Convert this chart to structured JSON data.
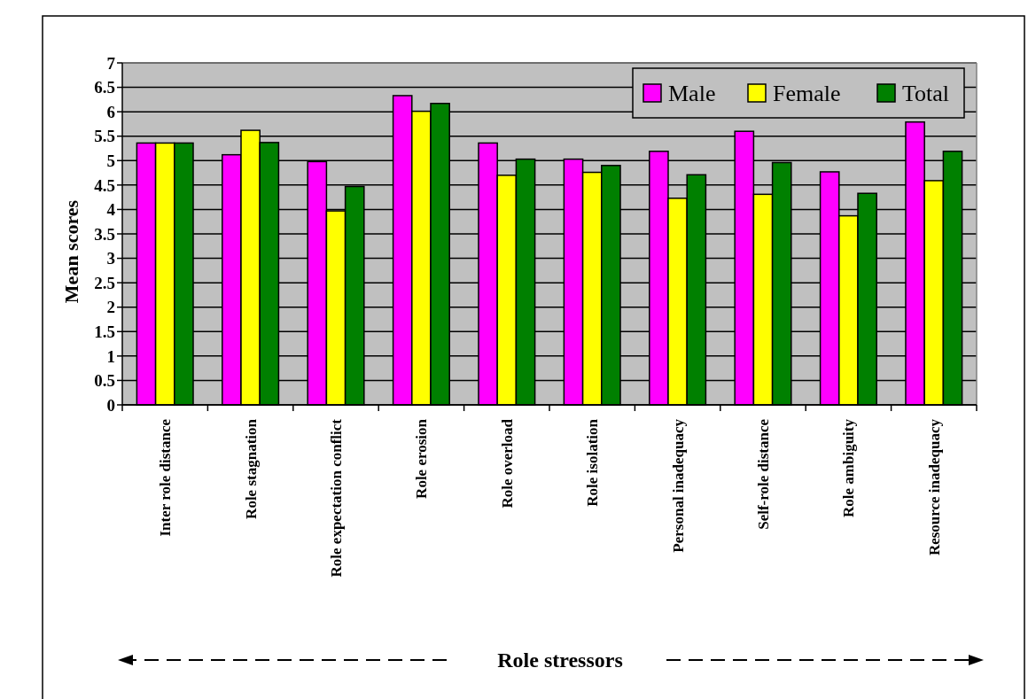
{
  "chart_data": {
    "type": "bar",
    "xlabel": "Role stressors",
    "ylabel": "Mean scores",
    "categories": [
      "Inter role distance",
      "Role stagnation",
      "Role expectation conflict",
      "Role erosion",
      "Role overload",
      "Role isolation",
      "Personal inadequacy",
      "Self-role distance",
      "Role ambiguity",
      "Resource inadequacy"
    ],
    "series": [
      {
        "name": "Male",
        "color": "#ff00ff",
        "values": [
          5.36,
          5.12,
          4.98,
          6.33,
          5.36,
          5.03,
          5.19,
          5.6,
          4.77,
          5.79
        ]
      },
      {
        "name": "Female",
        "color": "#ffff00",
        "values": [
          5.36,
          5.62,
          3.97,
          6.01,
          4.7,
          4.76,
          4.23,
          4.31,
          3.87,
          4.59
        ]
      },
      {
        "name": "Total",
        "color": "#008000",
        "values": [
          5.36,
          5.37,
          4.47,
          6.17,
          5.03,
          4.9,
          4.71,
          4.96,
          4.33,
          5.19
        ]
      }
    ],
    "ylim": [
      0,
      7
    ],
    "yticks": [
      0,
      0.5,
      1,
      1.5,
      2,
      2.5,
      3,
      3.5,
      4,
      4.5,
      5,
      5.5,
      6,
      6.5,
      7
    ],
    "grid": "y",
    "legend": "top right"
  }
}
